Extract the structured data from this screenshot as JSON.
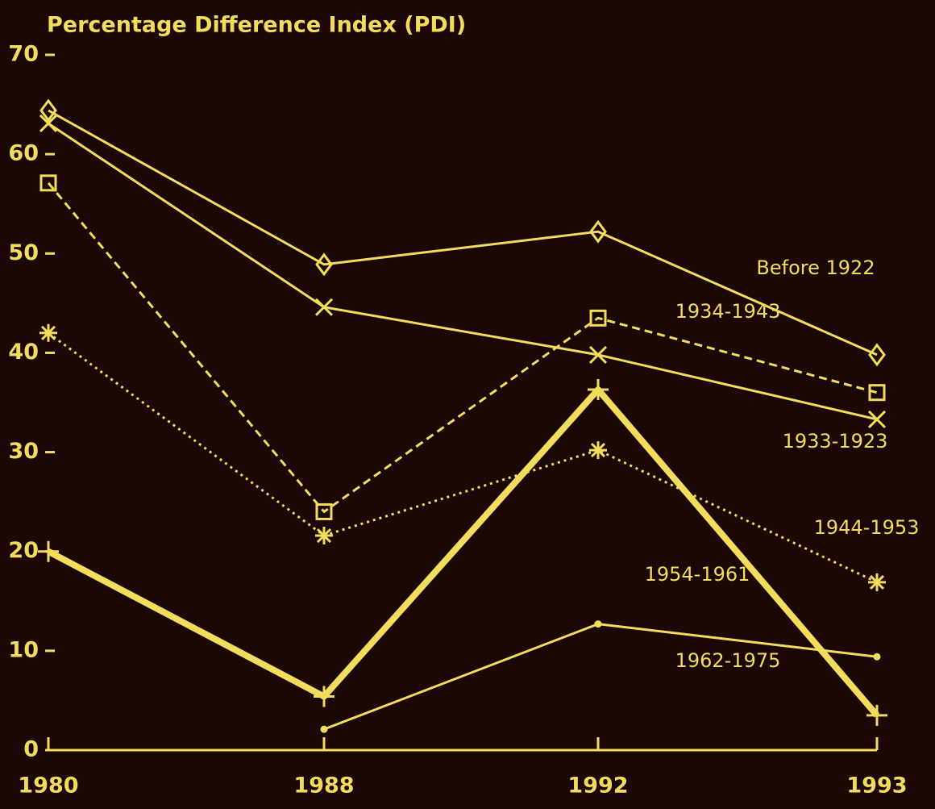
{
  "chart_data": {
    "type": "line",
    "title": "Percentage Difference Index (PDI)",
    "categories": [
      "1980",
      "1988",
      "1992",
      "1993"
    ],
    "ylim": [
      0,
      70
    ],
    "yticks": [
      0,
      10,
      20,
      30,
      40,
      50,
      60,
      70
    ],
    "color": "#f3dc5c",
    "series": [
      {
        "name": "Before 1922",
        "marker": "diamond",
        "dash": "solid",
        "width": 3,
        "values": [
          64.4,
          48.9,
          52.2,
          39.8
        ]
      },
      {
        "name": "1933-1923",
        "marker": "x",
        "dash": "solid",
        "width": 3,
        "values": [
          63.1,
          44.6,
          39.8,
          33.3
        ]
      },
      {
        "name": "1934-1943",
        "marker": "square",
        "dash": "dashed",
        "width": 3,
        "values": [
          57.1,
          24.0,
          43.5,
          36.0
        ]
      },
      {
        "name": "1944-1953",
        "marker": "asterisk",
        "dash": "dotted",
        "width": 3,
        "values": [
          42.0,
          21.6,
          30.2,
          16.9
        ]
      },
      {
        "name": "1954-1961",
        "marker": "plus",
        "dash": "solid",
        "width": 8,
        "values": [
          20.0,
          5.4,
          36.3,
          3.5
        ]
      },
      {
        "name": "1962-1975",
        "marker": "dot",
        "dash": "solid",
        "width": 3,
        "values": [
          null,
          2.1,
          12.7,
          9.4
        ]
      }
    ]
  }
}
